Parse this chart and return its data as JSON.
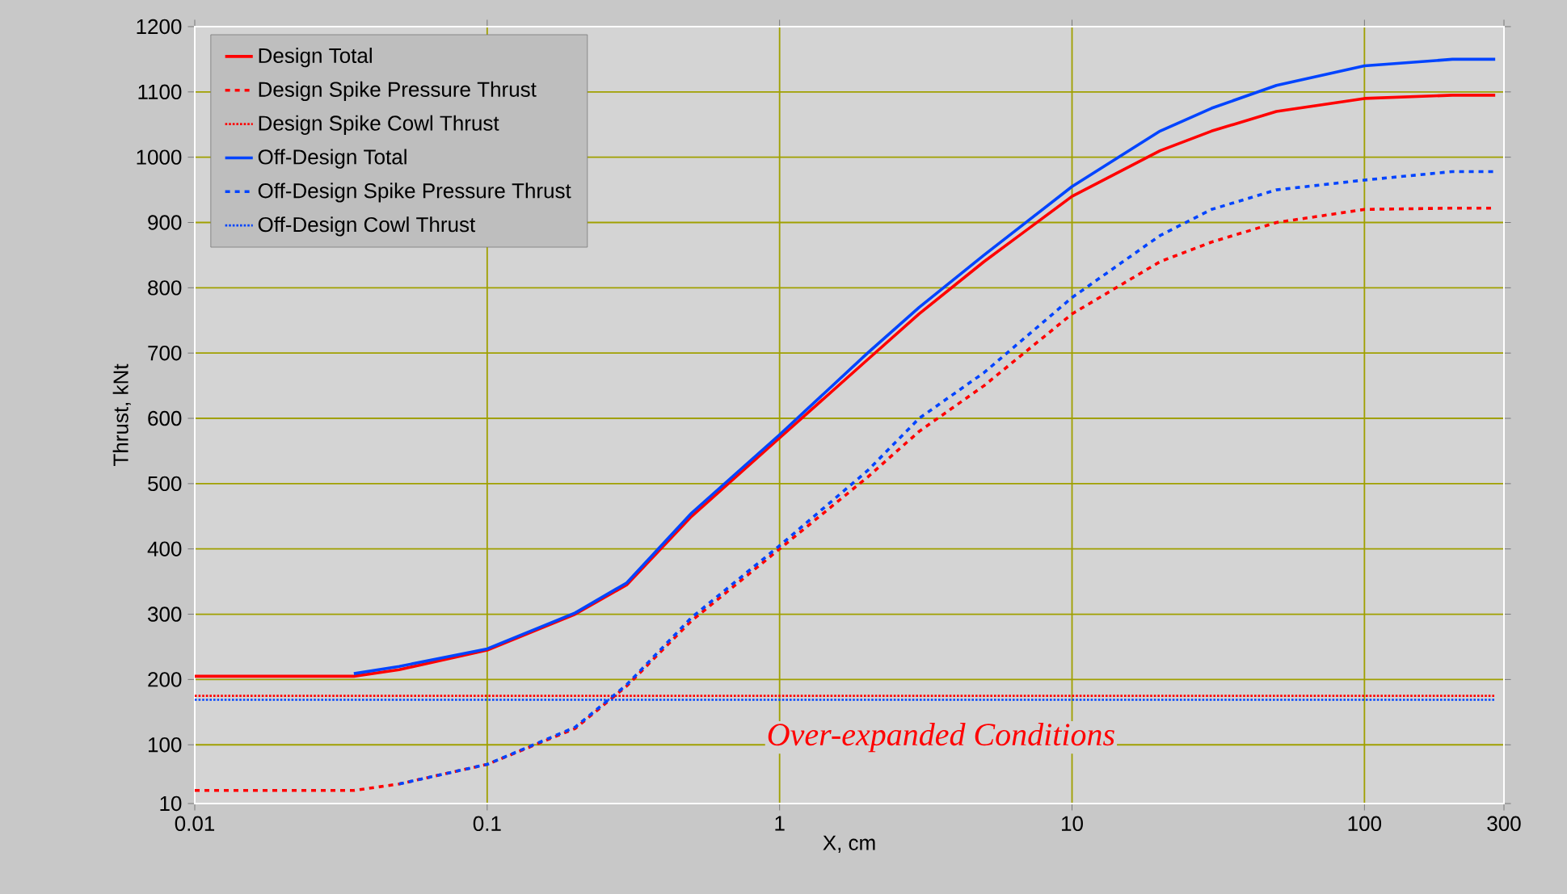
{
  "chart_data": {
    "type": "line",
    "xlabel": "X, cm",
    "ylabel": "Thrust, kNt",
    "x": [
      0.01,
      0.035,
      0.05,
      0.1,
      0.2,
      0.3,
      0.5,
      1,
      2,
      3,
      5,
      10,
      20,
      30,
      50,
      100,
      200,
      280
    ],
    "series": [
      {
        "name": "Design Total",
        "color": "#ff0000",
        "line_style": "solid",
        "values": [
          205,
          205,
          215,
          245,
          300,
          345,
          450,
          570,
          690,
          760,
          840,
          940,
          1010,
          1040,
          1070,
          1090,
          1095,
          1095
        ]
      },
      {
        "name": "Design Spike Pressure Thrust",
        "color": "#ff0000",
        "line_style": "dashed",
        "values": [
          30,
          30,
          40,
          70,
          125,
          190,
          290,
          400,
          510,
          580,
          650,
          760,
          840,
          870,
          900,
          920,
          922,
          922
        ]
      },
      {
        "name": "Design Spike Cowl Thrust",
        "color": "#ff0000",
        "line_style": "dotted",
        "values": [
          175,
          175,
          175,
          175,
          175,
          175,
          175,
          175,
          175,
          175,
          175,
          175,
          175,
          175,
          175,
          175,
          175,
          175
        ]
      },
      {
        "name": "Off-Design Total",
        "color": "#0044ff",
        "line_style": "solid",
        "values": [
          null,
          209,
          220,
          247,
          302,
          348,
          455,
          575,
          700,
          770,
          850,
          955,
          1040,
          1075,
          1110,
          1140,
          1150,
          1150
        ]
      },
      {
        "name": "Off-Design Spike Pressure Thrust",
        "color": "#0044ff",
        "line_style": "dashed",
        "values": [
          null,
          null,
          40,
          70,
          127,
          192,
          295,
          405,
          520,
          600,
          670,
          785,
          880,
          920,
          950,
          965,
          978,
          978
        ]
      },
      {
        "name": "Off-Design Cowl Thrust",
        "color": "#0044ff",
        "line_style": "dotted",
        "values": [
          169,
          169,
          169,
          169,
          169,
          169,
          169,
          169,
          169,
          169,
          169,
          169,
          169,
          169,
          169,
          169,
          169,
          169
        ]
      }
    ],
    "log": "x",
    "xlim": [
      0.01,
      300
    ],
    "ylim": [
      10,
      1200
    ],
    "xticks": [
      0.01,
      0.1,
      1,
      10,
      100,
      300
    ],
    "yticks": [
      10,
      100,
      200,
      300,
      400,
      500,
      600,
      700,
      800,
      900,
      1000,
      1100,
      1200
    ],
    "grid": true,
    "legend": "top left",
    "annotations": [
      "Over-expanded Conditions"
    ]
  }
}
